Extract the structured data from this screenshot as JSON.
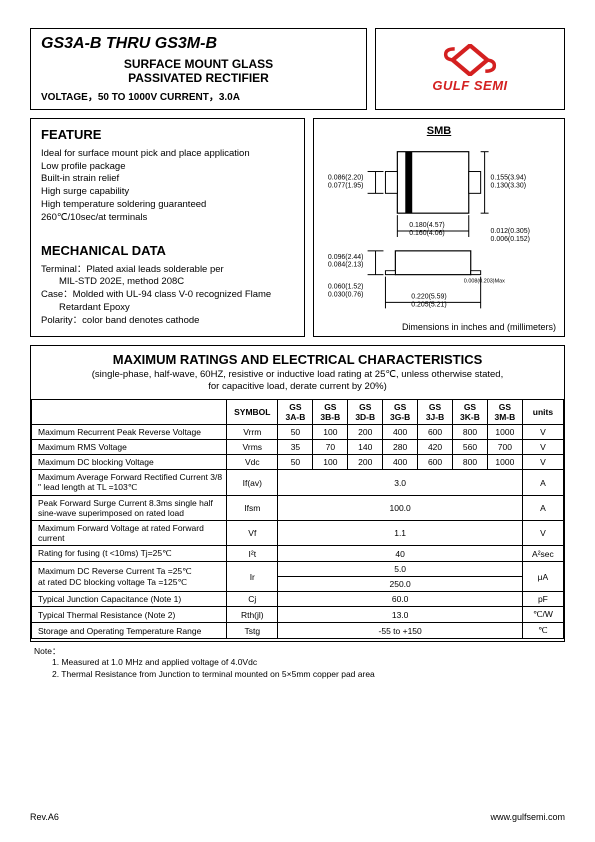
{
  "header": {
    "title": "GS3A-B THRU  GS3M-B",
    "subtitle1": "SURFACE  MOUNT  GLASS",
    "subtitle2": "PASSIVATED  RECTIFIER",
    "voltline": "VOLTAGE，50 TO 1000V         CURRENT，3.0A",
    "brand": "GULF SEMI"
  },
  "feature": {
    "heading": "FEATURE",
    "lines": [
      "Ideal for surface mount pick and place application",
      "Low profile package",
      "Built-in strain relief",
      "High surge capability",
      "High temperature soldering guaranteed",
      "260℃/10sec/at terminals"
    ]
  },
  "mechanical": {
    "heading": "MECHANICAL DATA",
    "term_label": "Terminal：Plated axial leads solderable per",
    "term_sub": "MIL-STD 202E, method 208C",
    "case_label": "Case：Molded with UL-94 class V-0 recognized Flame",
    "case_sub": "Retardant Epoxy",
    "polarity": "Polarity：color band denotes cathode"
  },
  "diagram": {
    "title": "SMB",
    "caption": "Dimensions in inches and (millimeters)",
    "dims": {
      "d1a": "0.086(2.20)",
      "d1b": "0.077(1.95)",
      "d2a": "0.155(3.94)",
      "d2b": "0.130(3.30)",
      "d3a": "0.180(4.57)",
      "d3b": "0.160(4.06)",
      "d4a": "0.012(0.305)",
      "d4b": "0.006(0.152)",
      "d5a": "0.096(2.44)",
      "d5b": "0.084(2.13)",
      "d6a": "0.060(1.52)",
      "d6b": "0.030(0.76)",
      "d7": "0.008(0.203)Max",
      "d8a": "0.220(5.59)",
      "d8b": "0.205(5.21)"
    }
  },
  "ratings": {
    "heading": "MAXIMUM  RATINGS  AND  ELECTRICAL  CHARACTERISTICS",
    "cond1": "(single-phase, half-wave, 60HZ, resistive or inductive load rating at 25℃, unless otherwise stated,",
    "cond2": "for capacitive load, derate current by 20%)",
    "col_symbol": "SYMBOL",
    "col_units": "units",
    "parts": [
      "GS 3A-B",
      "GS 3B-B",
      "GS 3D-B",
      "GS 3G-B",
      "GS 3J-B",
      "GS 3K-B",
      "GS 3M-B"
    ],
    "rows": [
      {
        "param": "Maximum Recurrent Peak Reverse Voltage",
        "sym": "Vrrm",
        "vals": [
          "50",
          "100",
          "200",
          "400",
          "600",
          "800",
          "1000"
        ],
        "unit": "V"
      },
      {
        "param": "Maximum RMS Voltage",
        "sym": "Vrms",
        "vals": [
          "35",
          "70",
          "140",
          "280",
          "420",
          "560",
          "700"
        ],
        "unit": "V"
      },
      {
        "param": "Maximum DC blocking Voltage",
        "sym": "Vdc",
        "vals": [
          "50",
          "100",
          "200",
          "400",
          "600",
          "800",
          "1000"
        ],
        "unit": "V"
      },
      {
        "param": "Maximum Average Forward Rectified Current 3/8 \" lead length at TL =103℃",
        "sym": "If(av)",
        "span": "3.0",
        "unit": "A"
      },
      {
        "param": "Peak Forward Surge Current 8.3ms single half sine-wave superimposed on rated load",
        "sym": "Ifsm",
        "span": "100.0",
        "unit": "A"
      },
      {
        "param": "Maximum Forward Voltage at rated Forward current",
        "sym": "Vf",
        "span": "1.1",
        "unit": "V"
      },
      {
        "param": "Rating for fusing (t <10ms)              Tj=25℃",
        "sym": "I²t",
        "span": "40",
        "unit": "A²sec"
      },
      {
        "param": "Maximum DC Reverse Current              Ta =25℃\nat rated DC blocking voltage              Ta =125℃",
        "sym": "Ir",
        "span2": [
          "5.0",
          "250.0"
        ],
        "unit": "μA"
      },
      {
        "param": "Typical Junction Capacitance          (Note 1)",
        "sym": "Cj",
        "span": "60.0",
        "unit": "pF"
      },
      {
        "param": "Typical Thermal Resistance           (Note 2)",
        "sym": "Rth(jl)",
        "span": "13.0",
        "unit": "℃/W"
      },
      {
        "param": "Storage and Operating Temperature Range",
        "sym": "Tstg",
        "span": "-55 to +150",
        "unit": "℃"
      }
    ]
  },
  "notes": {
    "heading": "Note：",
    "n1": "1. Measured at 1.0 MHz and applied voltage of 4.0Vdc",
    "n2": "2. Thermal Resistance from Junction to terminal mounted on 5×5mm copper pad area"
  },
  "footer": {
    "rev": "Rev.A6",
    "url": "www.gulfsemi.com"
  }
}
